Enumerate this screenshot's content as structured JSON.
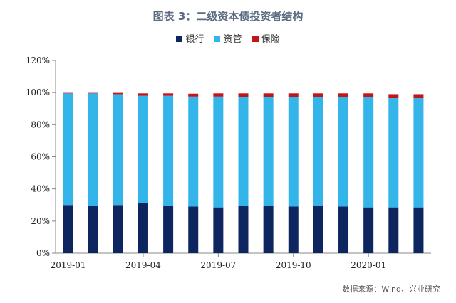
{
  "title": "图表 3：二级资本债投资者结构",
  "source": "数据来源：Wind、兴业研究",
  "colors": {
    "银行": "#0d2660",
    "资管": "#33b5ea",
    "保险": "#c0161a"
  },
  "chart_data": {
    "type": "bar",
    "stacked": true,
    "categories": [
      "2019-01",
      "2019-02",
      "2019-03",
      "2019-04",
      "2019-05",
      "2019-06",
      "2019-07",
      "2019-08",
      "2019-09",
      "2019-10",
      "2019-11",
      "2019-12",
      "2020-01",
      "2020-02",
      "2020-03"
    ],
    "x_tick_labels": [
      {
        "index": 0,
        "label": "2019-01"
      },
      {
        "index": 3,
        "label": "2019-04"
      },
      {
        "index": 6,
        "label": "2019-07"
      },
      {
        "index": 9,
        "label": "2019-10"
      },
      {
        "index": 12,
        "label": "2020-01"
      }
    ],
    "series": [
      {
        "name": "银行",
        "values": [
          30,
          29.5,
          30,
          31,
          29.5,
          29,
          28.5,
          29.5,
          29.5,
          29,
          29.5,
          29,
          28.5,
          28.5,
          28.5
        ]
      },
      {
        "name": "资管",
        "values": [
          69.5,
          70,
          69,
          67,
          68.5,
          68.5,
          69,
          67.5,
          67.5,
          68,
          67.5,
          68,
          68.5,
          68,
          68
        ]
      },
      {
        "name": "保险",
        "values": [
          0.3,
          0.3,
          0.8,
          1.5,
          1.5,
          1.8,
          2,
          2.5,
          2.5,
          2.5,
          2.5,
          2.5,
          2.5,
          2.5,
          2.5
        ]
      }
    ],
    "ylim": [
      0,
      120
    ],
    "yticks": [
      "0%",
      "20%",
      "40%",
      "60%",
      "80%",
      "100%",
      "120%"
    ],
    "grid": false,
    "legend_position": "top"
  }
}
